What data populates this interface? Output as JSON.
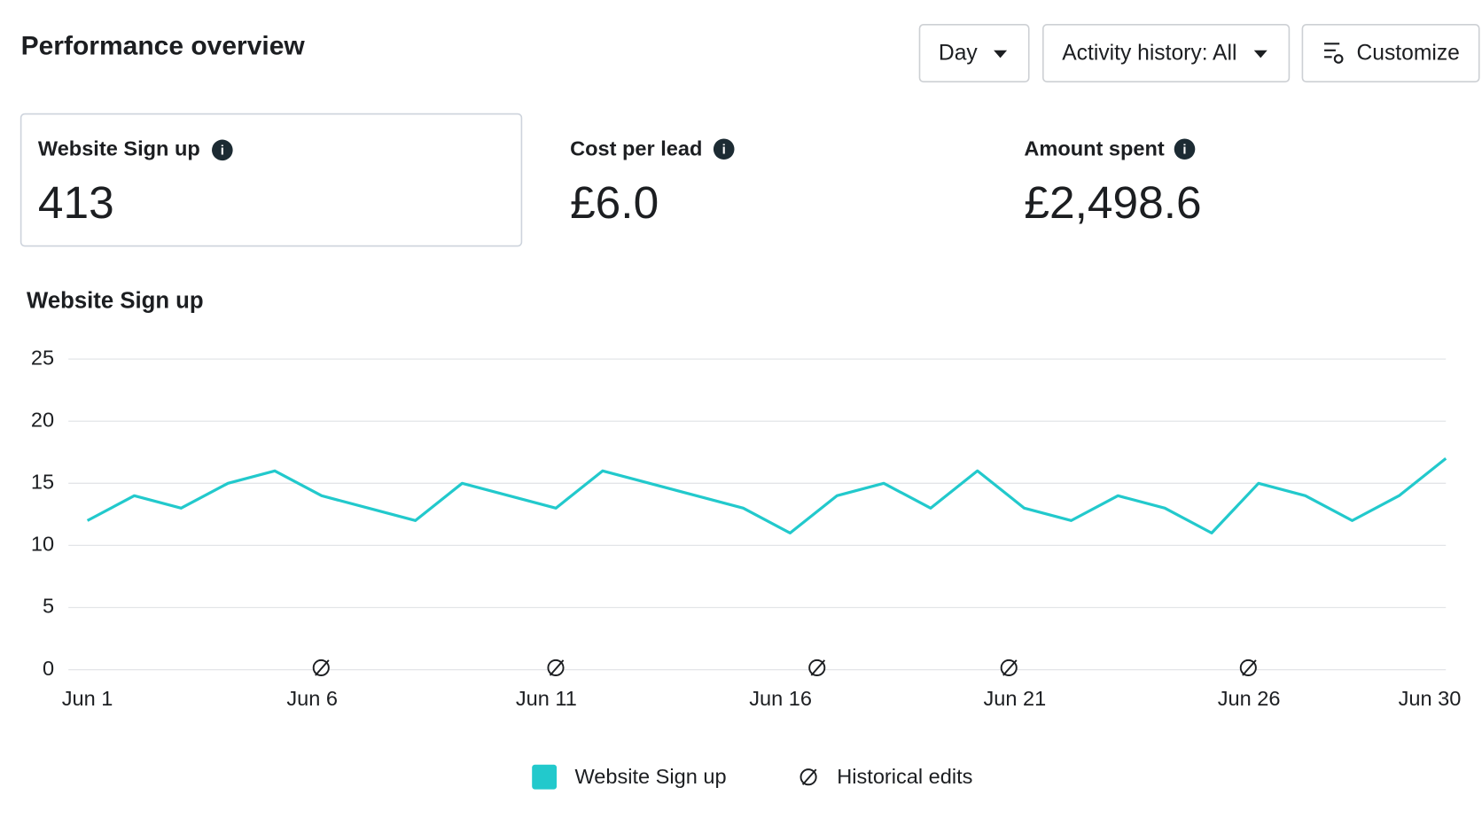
{
  "header": {
    "title": "Performance overview"
  },
  "controls": [
    {
      "label": "Day"
    },
    {
      "label": "Activity history: All"
    },
    {
      "label": "Customize"
    }
  ],
  "metrics": [
    {
      "label": "Website Sign up",
      "value": "413"
    },
    {
      "label": "Cost per lead",
      "value": "£6.0"
    },
    {
      "label": "Amount spent",
      "value": "£2,498.6"
    }
  ],
  "chart_data": {
    "type": "line",
    "title": "Website Sign up",
    "categories": [
      "Jun 1",
      null,
      null,
      null,
      null,
      "Jun 6",
      null,
      null,
      null,
      null,
      "Jun 11",
      null,
      null,
      null,
      null,
      "Jun 16",
      null,
      null,
      null,
      null,
      "Jun 21",
      null,
      null,
      null,
      null,
      "Jun 26",
      null,
      null,
      null,
      "Jun 30"
    ],
    "series": [
      {
        "name": "Website Sign up",
        "color": "#22c9cc",
        "values": [
          12,
          14,
          13,
          15,
          16,
          14,
          13,
          12,
          15,
          14,
          13,
          16,
          15,
          14,
          13,
          11,
          14,
          15,
          13,
          16,
          13,
          12,
          14,
          13,
          11,
          15,
          14,
          12,
          14,
          17
        ]
      }
    ],
    "ylim": [
      0,
      25
    ],
    "yticks": [
      0,
      5,
      10,
      15,
      20,
      25
    ],
    "grid": true,
    "annotation_legend": "Historical edits"
  }
}
